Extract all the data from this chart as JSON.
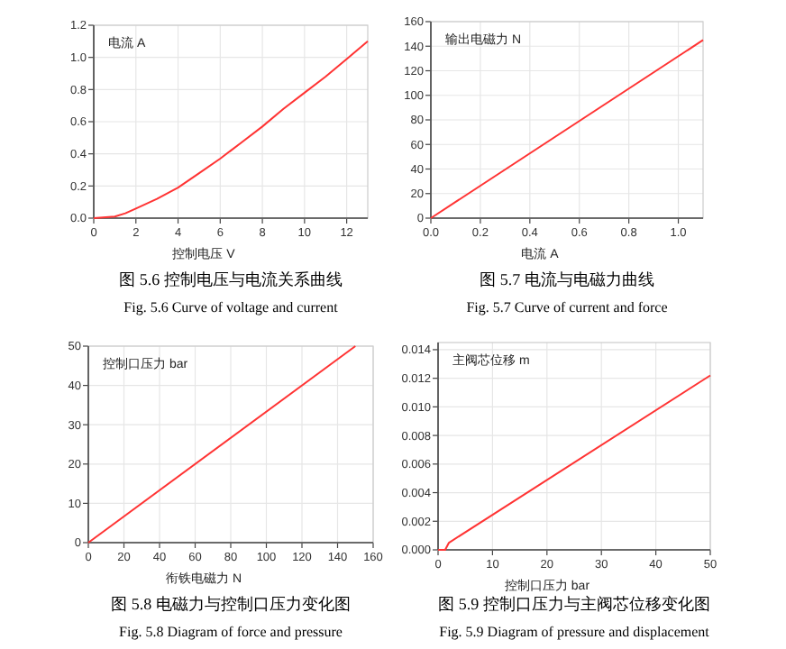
{
  "chart_data": [
    {
      "type": "line",
      "title": "图 5.6 控制电压与电流关系曲线",
      "subtitle": "Fig. 5.6 Curve of voltage and current",
      "xlabel": "控制电压 V",
      "ylabel": "电流 A",
      "grid": true,
      "line_style": "solid",
      "series": [
        {
          "color": "#ff3333",
          "x": [
            0,
            1,
            1.5,
            2,
            3,
            4,
            5,
            6,
            7,
            8,
            9,
            10,
            11,
            12,
            13
          ],
          "values": [
            0,
            0.01,
            0.03,
            0.06,
            0.12,
            0.19,
            0.28,
            0.37,
            0.47,
            0.57,
            0.68,
            0.78,
            0.88,
            0.99,
            1.1
          ]
        }
      ],
      "xlim": [
        0,
        13
      ],
      "xticks": [
        0,
        2,
        4,
        6,
        8,
        10,
        12
      ],
      "ylim": [
        0,
        1.2
      ],
      "yticks": [
        {
          "value": 0,
          "label": "0.0"
        },
        {
          "value": 0.2,
          "label": "0.2"
        },
        {
          "value": 0.4,
          "label": "0.4"
        },
        {
          "value": 0.6,
          "label": "0.6"
        },
        {
          "value": 0.8,
          "label": "0.8"
        },
        {
          "value": 1,
          "label": "1.0"
        },
        {
          "value": 1.2,
          "label": "1.2"
        }
      ]
    },
    {
      "type": "line",
      "title": "图 5.7 电流与电磁力曲线",
      "subtitle": "Fig. 5.7 Curve of current and force",
      "xlabel": "电流 A",
      "ylabel": "输出电磁力 N",
      "grid": true,
      "line_style": "solid",
      "series": [
        {
          "color": "#ff3333",
          "x": [
            0,
            1.1
          ],
          "values": [
            0,
            145
          ]
        }
      ],
      "xlim": [
        0,
        1.1
      ],
      "xticks": [
        {
          "value": 0,
          "label": "0.0"
        },
        {
          "value": 0.2,
          "label": "0.2"
        },
        {
          "value": 0.4,
          "label": "0.4"
        },
        {
          "value": 0.6,
          "label": "0.6"
        },
        {
          "value": 0.8,
          "label": "0.8"
        },
        {
          "value": 1,
          "label": "1.0"
        }
      ],
      "ylim": [
        0,
        160
      ],
      "yticks": [
        0,
        20,
        40,
        60,
        80,
        100,
        120,
        140,
        160
      ]
    },
    {
      "type": "line",
      "title": "图 5.8 电磁力与控制口压力变化图",
      "subtitle": "Fig. 5.8 Diagram of force and pressure",
      "xlabel": "衔铁电磁力 N",
      "ylabel": "控制口压力 bar",
      "grid": true,
      "line_style": "solid",
      "series": [
        {
          "color": "#ff3333",
          "x": [
            0,
            150
          ],
          "values": [
            0,
            50
          ]
        }
      ],
      "xlim": [
        0,
        160
      ],
      "xticks": [
        0,
        20,
        40,
        60,
        80,
        100,
        120,
        140,
        160
      ],
      "ylim": [
        0,
        50
      ],
      "yticks": [
        0,
        10,
        20,
        30,
        40,
        50
      ]
    },
    {
      "type": "line",
      "title": "图 5.9 控制口压力与主阀芯位移变化图",
      "subtitle": "Fig. 5.9 Diagram of pressure and displacement",
      "xlabel": "控制口压力 bar",
      "ylabel": "主阀芯位移 m",
      "grid": true,
      "line_style": "solid",
      "series": [
        {
          "color": "#ff3333",
          "x": [
            0,
            1.3,
            2,
            50
          ],
          "values": [
            0,
            0,
            0.0005,
            0.0122
          ]
        }
      ],
      "xlim": [
        0,
        50
      ],
      "xticks": [
        0,
        10,
        20,
        30,
        40,
        50
      ],
      "ylim": [
        0,
        0.0145
      ],
      "yticks": [
        {
          "value": 0,
          "label": "0.000"
        },
        {
          "value": 0.002,
          "label": "0.002"
        },
        {
          "value": 0.004,
          "label": "0.004"
        },
        {
          "value": 0.006,
          "label": "0.006"
        },
        {
          "value": 0.008,
          "label": "0.008"
        },
        {
          "value": 0.01,
          "label": "0.010"
        },
        {
          "value": 0.012,
          "label": "0.012"
        },
        {
          "value": 0.014,
          "label": "0.014"
        }
      ]
    }
  ]
}
